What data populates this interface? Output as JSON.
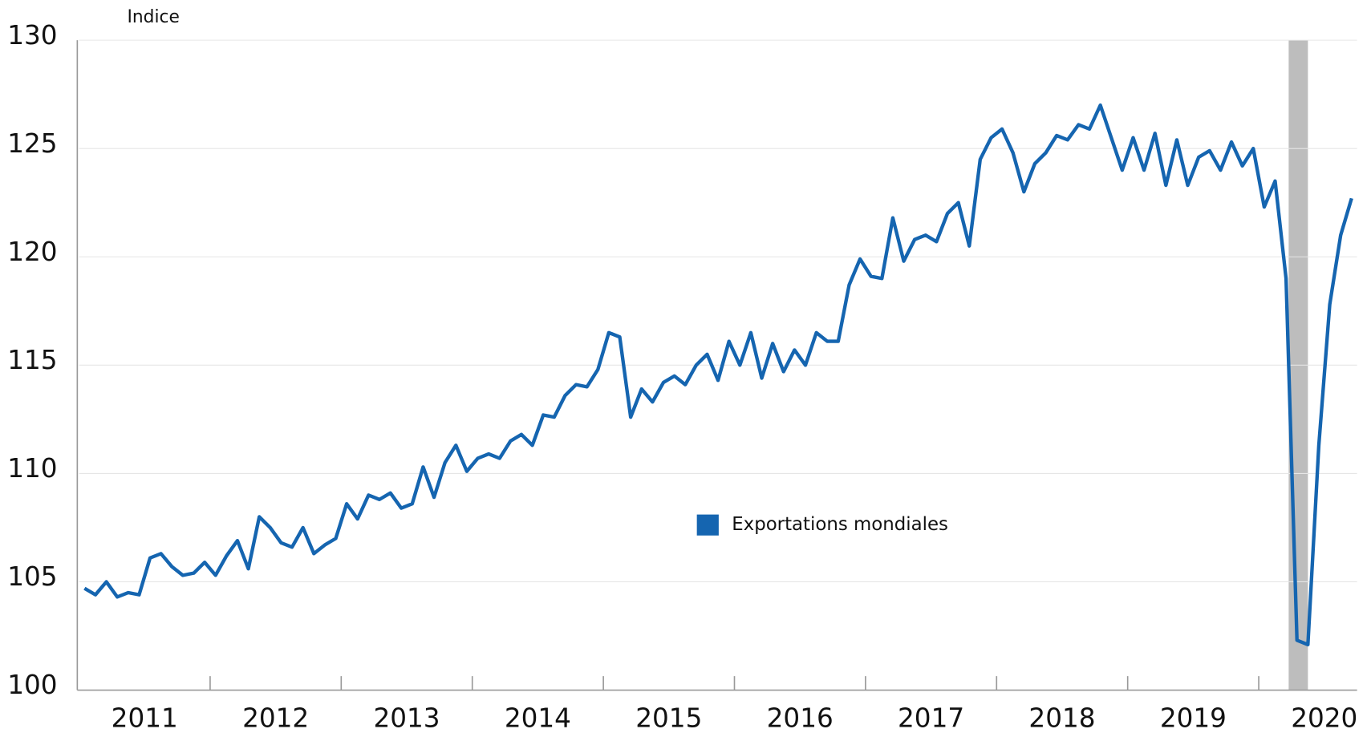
{
  "chart_data": {
    "type": "line",
    "y_axis_label": "Indice",
    "categories": [
      null,
      null,
      null,
      null,
      null,
      null,
      "2011",
      null,
      null,
      null,
      null,
      null,
      null,
      null,
      null,
      null,
      null,
      null,
      "2012",
      null,
      null,
      null,
      null,
      null,
      null,
      null,
      null,
      null,
      null,
      null,
      "2013",
      null,
      null,
      null,
      null,
      null,
      null,
      null,
      null,
      null,
      null,
      null,
      "2014",
      null,
      null,
      null,
      null,
      null,
      null,
      null,
      null,
      null,
      null,
      null,
      "2015",
      null,
      null,
      null,
      null,
      null,
      null,
      null,
      null,
      null,
      null,
      null,
      "2016",
      null,
      null,
      null,
      null,
      null,
      null,
      null,
      null,
      null,
      null,
      null,
      "2017",
      null,
      null,
      null,
      null,
      null,
      null,
      null,
      null,
      null,
      null,
      null,
      "2018",
      null,
      null,
      null,
      null,
      null,
      null,
      null,
      null,
      null,
      null,
      null,
      "2019",
      null,
      null,
      null,
      null,
      null,
      null,
      null,
      null,
      null,
      null,
      null,
      "2020",
      null,
      null
    ],
    "series": [
      {
        "name": "Exportations mondiales",
        "color": "#1565b0",
        "values": [
          104.7,
          104.4,
          105.0,
          104.3,
          104.5,
          104.4,
          106.1,
          106.3,
          105.7,
          105.3,
          105.4,
          105.9,
          105.3,
          106.2,
          106.9,
          105.6,
          108.0,
          107.5,
          106.8,
          106.6,
          107.5,
          106.3,
          106.7,
          107.0,
          108.6,
          107.9,
          109.0,
          108.8,
          109.1,
          108.4,
          108.6,
          110.3,
          108.9,
          110.5,
          111.3,
          110.1,
          110.7,
          110.9,
          110.7,
          111.5,
          111.8,
          111.3,
          112.7,
          112.6,
          113.6,
          114.1,
          114.0,
          114.8,
          116.5,
          116.3,
          112.6,
          113.9,
          113.3,
          114.2,
          114.5,
          114.1,
          115.0,
          115.5,
          114.3,
          116.1,
          115.0,
          116.5,
          114.4,
          116.0,
          114.7,
          115.7,
          115.0,
          116.5,
          116.1,
          116.1,
          118.7,
          119.9,
          119.1,
          119.0,
          121.8,
          119.8,
          120.8,
          121.0,
          120.7,
          122.0,
          122.5,
          120.5,
          124.5,
          125.5,
          125.9,
          124.8,
          123.0,
          124.3,
          124.8,
          125.6,
          125.4,
          126.1,
          125.9,
          127.0,
          125.5,
          124.0,
          125.5,
          124.0,
          125.7,
          123.3,
          125.4,
          123.3,
          124.6,
          124.9,
          124.0,
          125.3,
          124.2,
          125.0,
          122.3,
          123.5,
          119.0,
          102.3,
          102.1,
          111.3,
          117.8,
          121.0,
          122.7
        ]
      }
    ],
    "shade": [
      110,
      112
    ],
    "shade_color": "#bdbdbd",
    "ylim": [
      100,
      130
    ],
    "yticks": [
      100,
      105,
      110,
      115,
      120,
      125,
      130
    ],
    "grid": true,
    "legend": "center"
  }
}
